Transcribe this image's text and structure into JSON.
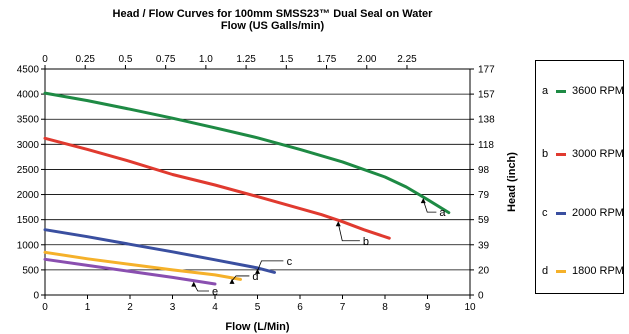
{
  "chart_data": {
    "type": "line",
    "title": "Head / Flow Curves for 100mm SMSS23™ Dual Seal on Water",
    "top_axis_title": "Flow (US Galls/min)",
    "xlabel": "Flow (L/Min)",
    "ylabel_right": "Head (inch)",
    "xlim": [
      0,
      10
    ],
    "ylim": [
      0,
      4500
    ],
    "grid": "horizontal",
    "legend_position": "right",
    "x_ticks": [
      "0",
      "1",
      "2",
      "3",
      "4",
      "5",
      "6",
      "7",
      "8",
      "9",
      "10"
    ],
    "y_ticks": [
      "0",
      "500",
      "1000",
      "1500",
      "2000",
      "2500",
      "3000",
      "3500",
      "4000",
      "4500"
    ],
    "top_ticks": [
      "0",
      "0.25",
      "0.5",
      "0.75",
      "1.0",
      "1.25",
      "1.5",
      "1.75",
      "2.00",
      "2.25"
    ],
    "right_ticks": [
      "0",
      "20",
      "39",
      "59",
      "79",
      "98",
      "118",
      "138",
      "157",
      "177"
    ],
    "series": [
      {
        "key": "a",
        "name": "3600 RPM",
        "color": "#1e8a44",
        "x": [
          0,
          1,
          2,
          3,
          4,
          5,
          6,
          7,
          8,
          8.5,
          9,
          9.5
        ],
        "y": [
          4020,
          3870,
          3700,
          3520,
          3330,
          3130,
          2900,
          2650,
          2350,
          2150,
          1900,
          1640
        ]
      },
      {
        "key": "b",
        "name": "3000 RPM",
        "color": "#e03a2f",
        "x": [
          0,
          1,
          2,
          3,
          4,
          5,
          6,
          6.5,
          7,
          7.5,
          8.1
        ],
        "y": [
          3120,
          2900,
          2660,
          2400,
          2190,
          1960,
          1720,
          1600,
          1460,
          1300,
          1130
        ]
      },
      {
        "key": "c",
        "name": "2000 RPM",
        "color": "#3a4fa0",
        "x": [
          0,
          1,
          2,
          3,
          4,
          5,
          5.4
        ],
        "y": [
          1300,
          1160,
          1010,
          860,
          700,
          540,
          450
        ]
      },
      {
        "key": "d",
        "name": "1800 RPM",
        "color": "#f5b12a",
        "x": [
          0,
          1,
          2,
          3,
          4,
          4.6
        ],
        "y": [
          850,
          720,
          610,
          500,
          400,
          310
        ]
      },
      {
        "key": "e",
        "name": "",
        "color": "#8a4fb0",
        "x": [
          0,
          1,
          2,
          3,
          4
        ],
        "y": [
          710,
          590,
          470,
          350,
          220
        ]
      }
    ],
    "annotations": [
      {
        "label": "a",
        "series": "a",
        "at_x": 8.9,
        "label_x": 9.35,
        "label_y": 1650
      },
      {
        "label": "b",
        "series": "b",
        "at_x": 6.9,
        "label_x": 7.55,
        "label_y": 1080
      },
      {
        "label": "c",
        "series": "c",
        "at_x": 5.0,
        "label_x": 5.75,
        "label_y": 680
      },
      {
        "label": "d",
        "series": "d",
        "at_x": 4.4,
        "label_x": 4.95,
        "label_y": 380
      },
      {
        "label": "e",
        "series": "e",
        "at_x": 3.5,
        "label_x": 4.0,
        "label_y": 80
      }
    ]
  }
}
